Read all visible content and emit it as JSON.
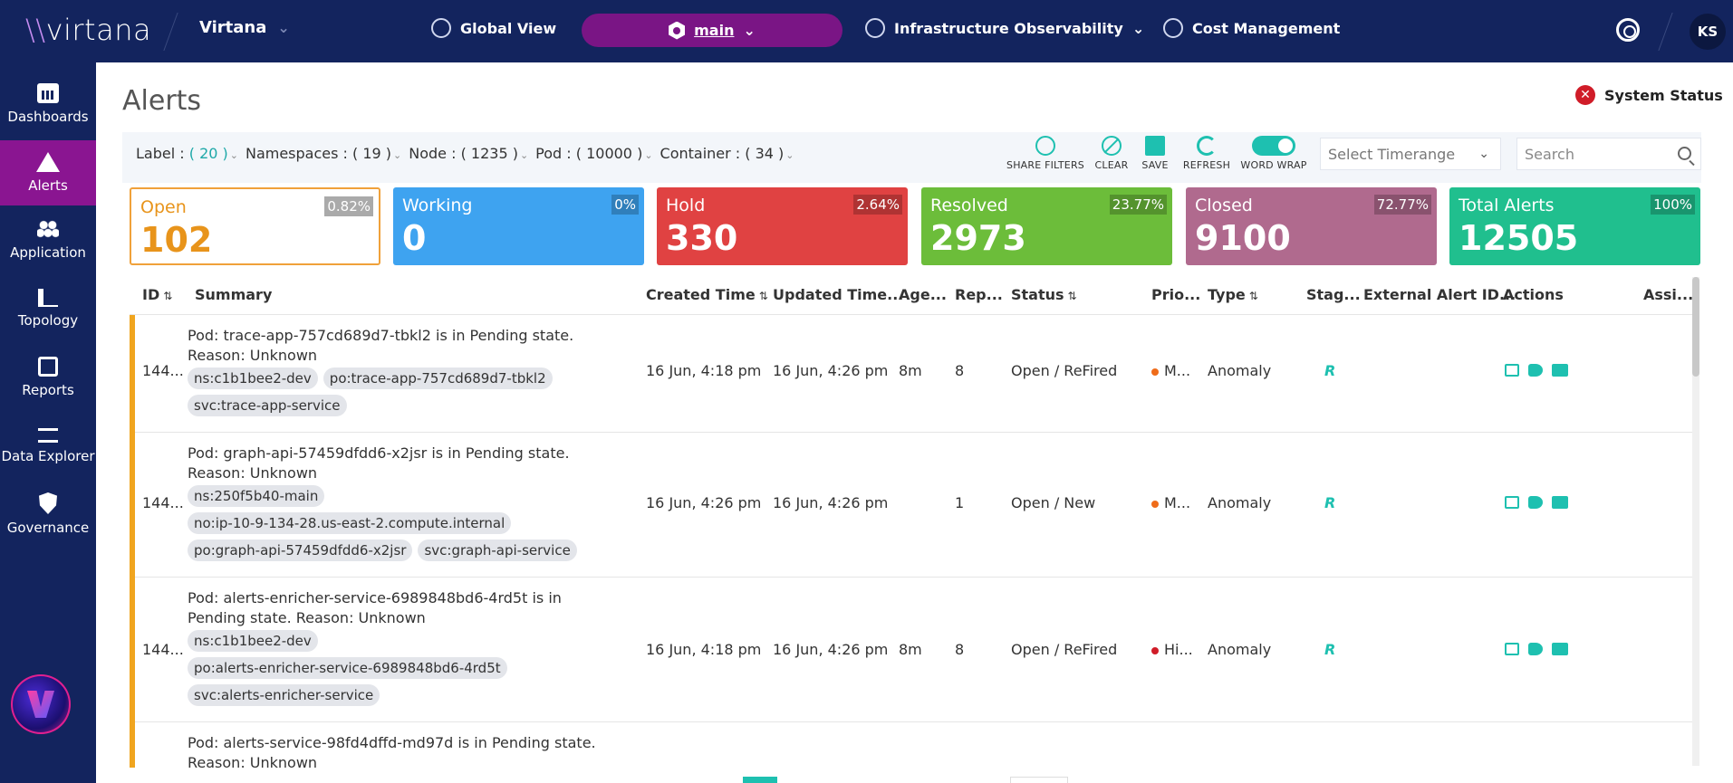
{
  "nav": {
    "logo": "virtana",
    "tenant": "Virtana",
    "global_view": "Global View",
    "main_pill": "main",
    "infra": "Infrastructure Observability",
    "cost": "Cost Management",
    "avatar": "KS"
  },
  "sidebar": {
    "items": [
      {
        "label": "Dashboards",
        "icon": "dashboard-icon"
      },
      {
        "label": "Alerts",
        "icon": "alert-icon"
      },
      {
        "label": "Application",
        "icon": "application-icon"
      },
      {
        "label": "Topology",
        "icon": "topology-icon"
      },
      {
        "label": "Reports",
        "icon": "reports-icon"
      },
      {
        "label": "Data Explorer",
        "icon": "data-explorer-icon"
      },
      {
        "label": "Governance",
        "icon": "governance-icon"
      }
    ]
  },
  "page": {
    "title": "Alerts",
    "system_status": "System Status"
  },
  "filters": {
    "label_key": "Label :",
    "label_count": "( 20 )",
    "namespaces": "Namespaces : ( 19 )",
    "node": "Node : ( 1235 )",
    "pod": "Pod : ( 10000 )",
    "container": "Container : ( 34 )"
  },
  "tools": {
    "share": "SHARE FILTERS",
    "clear": "CLEAR",
    "save": "SAVE",
    "refresh": "REFRESH",
    "word_wrap": "WORD WRAP"
  },
  "timerange": {
    "placeholder": "Select Timerange"
  },
  "search": {
    "placeholder": "Search"
  },
  "kpis": [
    {
      "label": "Open",
      "value": "102",
      "pct": "0.82%",
      "color": "#ffffff"
    },
    {
      "label": "Working",
      "value": "0",
      "pct": "0%",
      "color": "#3ea3f0"
    },
    {
      "label": "Hold",
      "value": "330",
      "pct": "2.64%",
      "color": "#e04242"
    },
    {
      "label": "Resolved",
      "value": "2973",
      "pct": "23.77%",
      "color": "#6cbd3a"
    },
    {
      "label": "Closed",
      "value": "9100",
      "pct": "72.77%",
      "color": "#b06a8e"
    },
    {
      "label": "Total Alerts",
      "value": "12505",
      "pct": "100%",
      "color": "#20bf8e"
    }
  ],
  "table": {
    "headers": [
      "ID",
      "Summary",
      "Created Time",
      "Updated Time...",
      "Age...",
      "Rep...",
      "Status",
      "Prio...",
      "Type",
      "Stag...",
      "External Alert ID...",
      "Actions",
      "Assi..."
    ],
    "rows": [
      {
        "id": "144...",
        "summary": "Pod: trace-app-757cd689d7-tbkl2 is in Pending state. Reason: Unknown",
        "chips": [
          "ns:c1b1bee2-dev",
          "po:trace-app-757cd689d7-tbkl2",
          "svc:trace-app-service"
        ],
        "created": "16 Jun, 4:18 pm",
        "updated": "16 Jun, 4:26 pm",
        "age": "8m",
        "rep": "8",
        "status": "Open / ReFired",
        "prio": "M...",
        "prio_color": "#ef6c1a",
        "type": "Anomaly",
        "stage": "R"
      },
      {
        "id": "144...",
        "summary": "Pod: graph-api-57459dfdd6-x2jsr is in Pending state. Reason: Unknown",
        "chips": [
          "ns:250f5b40-main",
          "no:ip-10-9-134-28.us-east-2.compute.internal",
          "po:graph-api-57459dfdd6-x2jsr",
          "svc:graph-api-service"
        ],
        "created": "16 Jun, 4:26 pm",
        "updated": "16 Jun, 4:26 pm",
        "age": "",
        "rep": "1",
        "status": "Open / New",
        "prio": "M...",
        "prio_color": "#ef6c1a",
        "type": "Anomaly",
        "stage": "R"
      },
      {
        "id": "144...",
        "summary": "Pod: alerts-enricher-service-6989848bd6-4rd5t is in Pending state. Reason: Unknown",
        "chips": [
          "ns:c1b1bee2-dev",
          "po:alerts-enricher-service-6989848bd6-4rd5t",
          "svc:alerts-enricher-service"
        ],
        "created": "16 Jun, 4:18 pm",
        "updated": "16 Jun, 4:26 pm",
        "age": "8m",
        "rep": "8",
        "status": "Open / ReFired",
        "prio": "Hi...",
        "prio_color": "#d01c28",
        "type": "Anomaly",
        "stage": "R"
      },
      {
        "id": "",
        "summary": "Pod: alerts-service-98fd4dffd-md97d is in Pending state. Reason: Unknown",
        "chips": [],
        "created": "",
        "updated": "",
        "age": "",
        "rep": "",
        "status": "",
        "prio": "",
        "prio_color": "",
        "type": "",
        "stage": ""
      }
    ]
  }
}
